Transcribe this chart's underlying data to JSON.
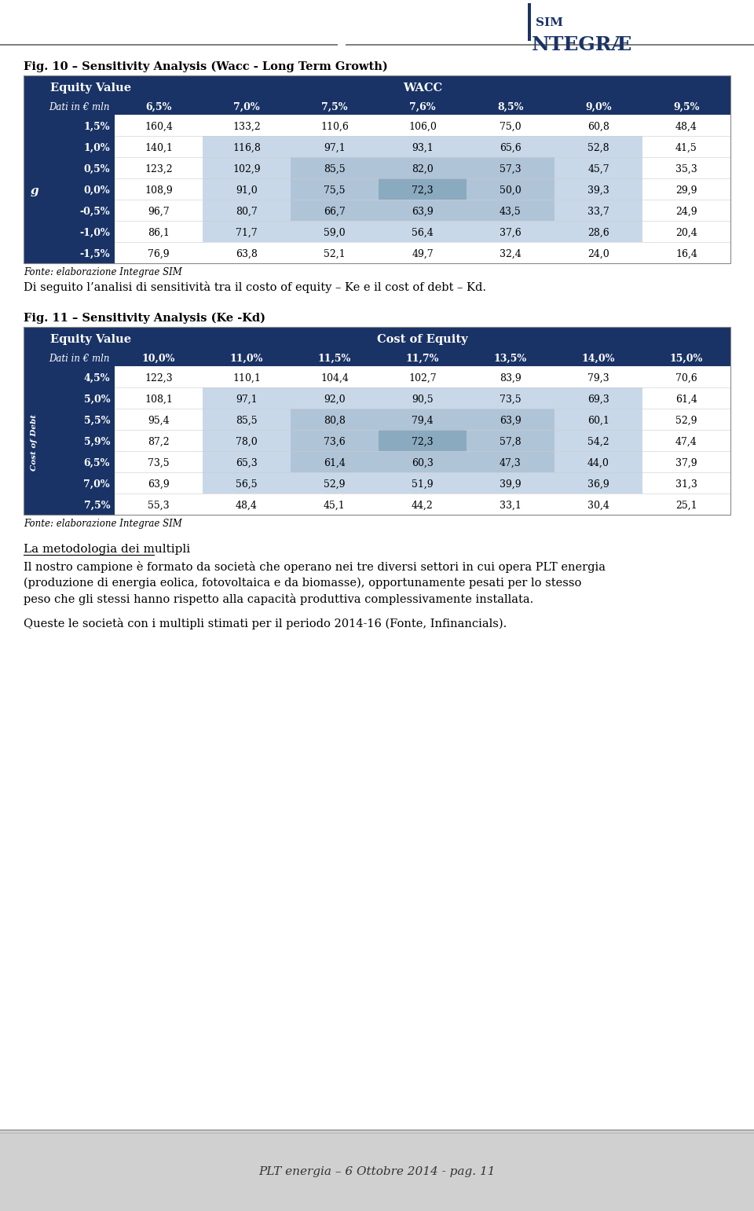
{
  "page_bg": "#ffffff",
  "header_line_color": "#808080",
  "logo_text1": "SIM",
  "logo_text2": "NTEGRÆ",
  "logo_bar_color": "#1a3366",
  "fig10_title": "Fig. 10 – Sensitivity Analysis (Wacc - Long Term Growth)",
  "fig10_header1": "Equity Value",
  "fig10_header2": "WACC",
  "fig10_subheader": "Dati in € mln",
  "fig10_col_labels": [
    "6,5%",
    "7,0%",
    "7,5%",
    "7,6%",
    "8,5%",
    "9,0%",
    "9,5%"
  ],
  "fig10_row_label_g": "g",
  "fig10_row_labels": [
    "1,5%",
    "1,0%",
    "0,5%",
    "0,0%",
    "-0,5%",
    "-1,0%",
    "-1,5%"
  ],
  "fig10_data": [
    [
      160.4,
      133.2,
      110.6,
      106.0,
      75.0,
      60.8,
      48.4
    ],
    [
      140.1,
      116.8,
      97.1,
      93.1,
      65.6,
      52.8,
      41.5
    ],
    [
      123.2,
      102.9,
      85.5,
      82.0,
      57.3,
      45.7,
      35.3
    ],
    [
      108.9,
      91.0,
      75.5,
      72.3,
      50.0,
      39.3,
      29.9
    ],
    [
      96.7,
      80.7,
      66.7,
      63.9,
      43.5,
      33.7,
      24.9
    ],
    [
      86.1,
      71.7,
      59.0,
      56.4,
      37.6,
      28.6,
      20.4
    ],
    [
      76.9,
      63.8,
      52.1,
      49.7,
      32.4,
      24.0,
      16.4
    ]
  ],
  "fig10_fonte": "Fonte: elaborazione Integrae SIM",
  "between_text": "Di seguito l’analisi di sensitività tra il costo of equity – Ke e il cost of debt – Kd.",
  "fig11_title": "Fig. 11 – Sensitivity Analysis (Ke -Kd)",
  "fig11_header1": "Equity Value",
  "fig11_header2": "Cost of Equity",
  "fig11_subheader": "Dati in € mln",
  "fig11_col_labels": [
    "10,0%",
    "11,0%",
    "11,5%",
    "11,7%",
    "13,5%",
    "14,0%",
    "15,0%"
  ],
  "fig11_row_label": "Cost of Debt",
  "fig11_row_labels": [
    "4,5%",
    "5,0%",
    "5,5%",
    "5,9%",
    "6,5%",
    "7,0%",
    "7,5%"
  ],
  "fig11_data": [
    [
      122.3,
      110.1,
      104.4,
      102.7,
      83.9,
      79.3,
      70.6
    ],
    [
      108.1,
      97.1,
      92.0,
      90.5,
      73.5,
      69.3,
      61.4
    ],
    [
      95.4,
      85.5,
      80.8,
      79.4,
      63.9,
      60.1,
      52.9
    ],
    [
      87.2,
      78.0,
      73.6,
      72.3,
      57.8,
      54.2,
      47.4
    ],
    [
      73.5,
      65.3,
      61.4,
      60.3,
      47.3,
      44.0,
      37.9
    ],
    [
      63.9,
      56.5,
      52.9,
      51.9,
      39.9,
      36.9,
      31.3
    ],
    [
      55.3,
      48.4,
      45.1,
      44.2,
      33.1,
      30.4,
      25.1
    ]
  ],
  "fig11_fonte": "Fonte: elaborazione Integrae SIM",
  "nav_text1": "La metodologia dei multipli",
  "nav_text2": "Il nostro campione è formato da società che operano nei tre diversi settori in cui opera PLT energia\n(produzione di energia eolica, fotovoltaica e da biomasse), opportunamente pesati per lo stesso\npeso che gli stessi hanno rispetto alla capacità produttiva complessivamente installata.",
  "nav_text3": "Queste le società con i multipli stimati per il periodo 2014-16 (Fonte, Infinancials).",
  "footer_bg": "#d0d0d0",
  "footer_text": "PLT energia – 6 Ottobre 2014 - pag. 11",
  "dark_blue": "#1a3366",
  "light_blue1": "#c8d8e8",
  "light_blue2": "#b0c4d8",
  "light_blue3": "#8aaabf",
  "white": "#ffffff",
  "text_dark": "#000000",
  "text_white": "#ffffff",
  "text_gray": "#333333"
}
